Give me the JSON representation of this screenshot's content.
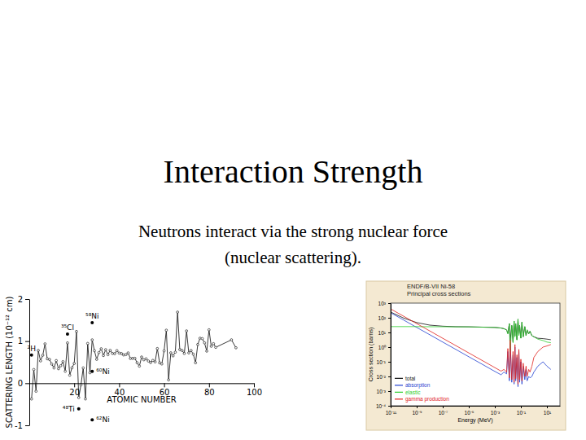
{
  "slide": {
    "title": "Interaction Strength",
    "text": [
      "Neutrons interact via the strong nuclear force",
      "(nuclear scattering)."
    ]
  },
  "chart_data": [
    {
      "type": "line",
      "x_label": "ATOMIC NUMBER",
      "y_label": "SCATTERING LENGTH (10⁻¹² cm)",
      "x": [
        1,
        2,
        3,
        4,
        5,
        6,
        7,
        8,
        9,
        10,
        11,
        12,
        13,
        14,
        15,
        16,
        17,
        18,
        19,
        20,
        21,
        22,
        23,
        24,
        25,
        26,
        27,
        28,
        29,
        30,
        31,
        32,
        33,
        34,
        35,
        36,
        37,
        38,
        39,
        40,
        41,
        42,
        43,
        44,
        45,
        46,
        47,
        48,
        49,
        50,
        51,
        52,
        53,
        54,
        55,
        56,
        57,
        58,
        59,
        60,
        61,
        62,
        63,
        64,
        65,
        66,
        67,
        68,
        69,
        70,
        71,
        72,
        73,
        74,
        75,
        76,
        77,
        78,
        79,
        80,
        81,
        82,
        83,
        90,
        92
      ],
      "series": [
        {
          "color": "#222222",
          "marker": "circle",
          "values": [
            -0.374,
            0.326,
            -0.19,
            0.779,
            0.53,
            0.665,
            0.936,
            0.58,
            0.565,
            0.455,
            0.363,
            0.538,
            0.345,
            0.415,
            0.513,
            0.285,
            0.958,
            0.19,
            0.367,
            0.47,
            1.23,
            -0.34,
            -0.04,
            0.364,
            -0.373,
            0.945,
            0.249,
            1.03,
            0.772,
            0.568,
            0.729,
            0.819,
            0.658,
            0.797,
            0.679,
            0.781,
            0.709,
            0.702,
            0.775,
            0.716,
            0.705,
            0.672,
            0.68,
            0.721,
            0.588,
            0.591,
            0.592,
            0.487,
            0.406,
            0.623,
            0.557,
            0.58,
            0.528,
            0.492,
            0.542,
            0.507,
            0.824,
            0.484,
            0.458,
            0.769,
            1.26,
            0.08,
            0.722,
            0.65,
            0.738,
            1.69,
            0.801,
            0.779,
            0.707,
            1.243,
            0.721,
            0.777,
            0.691,
            0.486,
            0.92,
            1.07,
            1.06,
            0.96,
            0.763,
            1.269,
            0.878,
            0.94,
            0.853,
            1.031,
            0.842
          ]
        }
      ],
      "xlim": [
        0,
        100
      ],
      "xticks": [
        20,
        40,
        60,
        80,
        100
      ],
      "ylim": [
        -1,
        2
      ],
      "yticks": [
        -1,
        0,
        1,
        2
      ],
      "annotations": [
        {
          "text": "²H",
          "x": 1,
          "y": 0.667
        },
        {
          "text": "³⁵Cl",
          "x": 17,
          "y": 1.17
        },
        {
          "text": "⁵⁸Ni",
          "x": 28,
          "y": 1.44
        },
        {
          "text": "⁶⁰Ni",
          "x": 28,
          "y": 0.28
        },
        {
          "text": "⁴⁸Ti",
          "x": 22,
          "y": -0.61
        },
        {
          "text": "⁶²Ni",
          "x": 28,
          "y": -0.87
        }
      ]
    },
    {
      "type": "line",
      "title": "ENDF/B-VII Ni-58",
      "subtitle": "Principal cross sections",
      "x_label": "Energy (MeV)",
      "y_label": "Cross section (barns)",
      "log": true,
      "legend": "lower left",
      "x": [
        1e-11,
        1e-10,
        1e-09,
        1e-08,
        1e-07,
        1e-06,
        1e-05,
        0.0001,
        0.001,
        0.003,
        0.005,
        0.008,
        0.01,
        0.013,
        0.015,
        0.02,
        0.025,
        0.03,
        0.035,
        0.04,
        0.05,
        0.06,
        0.07,
        0.08,
        0.1,
        0.12,
        0.15,
        0.2,
        0.25,
        0.3,
        0.4,
        0.5,
        0.7,
        1,
        2,
        5,
        10,
        20
      ],
      "series": [
        {
          "name": "total",
          "color": "#111111",
          "values": [
            245,
            95,
            47,
            31.5,
            26.7,
            24.7,
            24.2,
            23.1,
            22,
            20,
            18,
            15,
            8.5,
            40,
            2.5,
            30,
            2.3,
            60,
            6,
            40,
            3.2,
            80,
            6.5,
            30,
            4.1,
            50,
            5.1,
            25,
            6,
            15,
            8,
            12,
            6,
            5.1,
            4,
            3.8,
            3.5,
            3.2
          ]
        },
        {
          "name": "absorption",
          "color": "#1f3fd0",
          "values": [
            220,
            70,
            22,
            7,
            2.2,
            0.7,
            0.22,
            0.07,
            0.022,
            0.013,
            0.02,
            0.015,
            0.5,
            0.005,
            2,
            0.004,
            0.3,
            0.003,
            1,
            0.005,
            0.2,
            0.002,
            0.5,
            0.004,
            0.1,
            0.003,
            0.05,
            0.006,
            0.03,
            0.005,
            0.01,
            0.008,
            0.01,
            0.02,
            0.05,
            0.1,
            0.05,
            0.03
          ]
        },
        {
          "name": "elastic",
          "color": "#2fcf2f",
          "values": [
            25,
            25,
            25,
            24.5,
            24.5,
            24,
            24,
            23,
            22,
            20,
            18,
            15,
            8,
            40,
            0.5,
            30,
            2,
            60,
            5,
            40,
            3,
            80,
            6,
            30,
            4,
            50,
            5,
            25,
            6,
            15,
            8,
            12,
            6,
            5,
            3.5,
            2.8,
            2.2,
            2
          ]
        },
        {
          "name": "gamma production",
          "color": "#e0201b",
          "values": [
            400,
            127,
            40,
            12.7,
            4,
            1.27,
            0.4,
            0.127,
            0.04,
            0.023,
            0.03,
            0.02,
            0.8,
            0.008,
            3,
            0.006,
            0.5,
            0.004,
            1.5,
            0.007,
            0.3,
            0.003,
            0.7,
            0.006,
            0.15,
            0.005,
            0.08,
            0.01,
            0.05,
            0.01,
            0.03,
            0.02,
            0.05,
            0.2,
            0.5,
            1,
            1.2,
            1.5
          ]
        }
      ],
      "xlim": [
        1e-11,
        100
      ],
      "xticks": [
        {
          "value": 1e-11,
          "label": "10⁻¹¹"
        },
        {
          "value": 1e-09,
          "label": "10⁻⁹"
        },
        {
          "value": 1e-07,
          "label": "10⁻⁷"
        },
        {
          "value": 1e-05,
          "label": "10⁻⁵"
        },
        {
          "value": 0.001,
          "label": "10⁻³"
        },
        {
          "value": 0.1,
          "label": "10⁻¹"
        },
        {
          "value": 10,
          "label": "10¹"
        }
      ],
      "ylim": [
        0.0001,
        1000
      ],
      "yticks": [
        {
          "value": 0.0001,
          "label": "10⁻⁴"
        },
        {
          "value": 0.001,
          "label": "10⁻³"
        },
        {
          "value": 0.01,
          "label": "10⁻²"
        },
        {
          "value": 0.1,
          "label": "10⁻¹"
        },
        {
          "value": 1,
          "label": "10⁰"
        },
        {
          "value": 10,
          "label": "10¹"
        },
        {
          "value": 100,
          "label": "10²"
        },
        {
          "value": 1000,
          "label": "10³"
        }
      ]
    }
  ]
}
